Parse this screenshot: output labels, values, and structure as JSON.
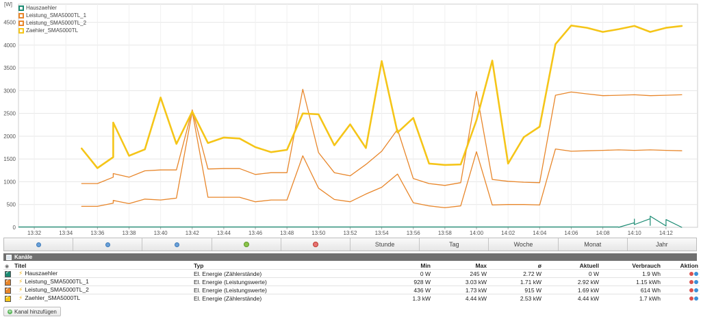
{
  "chart": {
    "unit_label": "[W]",
    "y_ticks": [
      "0",
      "500",
      "1000",
      "1500",
      "2000",
      "2500",
      "3000",
      "3500",
      "4000",
      "4500"
    ],
    "x_ticks": [
      "13:32",
      "13:34",
      "13:36",
      "13:38",
      "13:40",
      "13:42",
      "13:44",
      "13:46",
      "13:48",
      "13:50",
      "13:52",
      "13:54",
      "13:56",
      "13:58",
      "14:00",
      "14:02",
      "14:04",
      "14:06",
      "14:08",
      "14:10",
      "14:12"
    ],
    "legend": [
      {
        "name": "Hauszaehler",
        "color": "#1a8a72"
      },
      {
        "name": "Leistung_SMA5000TL_1",
        "color": "#e8862a"
      },
      {
        "name": "Leistung_SMA5000TL_2",
        "color": "#e8862a"
      },
      {
        "name": "Zaehler_SMA5000TL",
        "color": "#f5c518"
      }
    ]
  },
  "chart_data": {
    "type": "line",
    "xlabel": "",
    "ylabel": "[W]",
    "ylim": [
      0,
      4900
    ],
    "xlim": [
      "13:31",
      "14:14"
    ],
    "series": [
      {
        "name": "Zaehler_SMA5000TL",
        "color": "#f5c518",
        "x": [
          "13:35",
          "13:36",
          "13:37",
          "13:37",
          "13:38",
          "13:39",
          "13:40",
          "13:41",
          "13:42",
          "13:43",
          "13:44",
          "13:45",
          "13:46",
          "13:47",
          "13:48",
          "13:49",
          "13:50",
          "13:51",
          "13:52",
          "13:53",
          "13:54",
          "13:55",
          "13:56",
          "13:57",
          "13:58",
          "13:59",
          "14:00",
          "14:01",
          "14:02",
          "14:03",
          "14:04",
          "14:05",
          "14:06",
          "14:07",
          "14:08",
          "14:09",
          "14:10",
          "14:11",
          "14:12",
          "14:13"
        ],
        "y": [
          1730,
          1300,
          1540,
          2300,
          1570,
          1710,
          2850,
          1830,
          2540,
          1850,
          1970,
          1950,
          1760,
          1650,
          1700,
          2500,
          2480,
          1800,
          2260,
          1740,
          3650,
          2080,
          2400,
          1400,
          1370,
          1380,
          2350,
          3660,
          1400,
          1980,
          2210,
          4020,
          4430,
          4380,
          4290,
          4350,
          4420,
          4290,
          4380,
          4420
        ]
      },
      {
        "name": "Leistung_SMA5000TL_1",
        "color": "#e8862a",
        "x": [
          "13:35",
          "13:36",
          "13:37",
          "13:37",
          "13:38",
          "13:39",
          "13:40",
          "13:41",
          "13:42",
          "13:43",
          "13:44",
          "13:45",
          "13:46",
          "13:47",
          "13:48",
          "13:49",
          "13:50",
          "13:51",
          "13:52",
          "13:53",
          "13:54",
          "13:55",
          "13:56",
          "13:57",
          "13:58",
          "13:59",
          "14:00",
          "14:01",
          "14:02",
          "14:03",
          "14:04",
          "14:05",
          "14:06",
          "14:07",
          "14:08",
          "14:09",
          "14:10",
          "14:11",
          "14:12",
          "14:13"
        ],
        "y": [
          960,
          960,
          1100,
          1180,
          1100,
          1240,
          1260,
          1260,
          2580,
          1280,
          1290,
          1290,
          1160,
          1200,
          1200,
          3030,
          1640,
          1200,
          1130,
          1380,
          1670,
          2150,
          1070,
          960,
          920,
          980,
          2980,
          1050,
          1010,
          990,
          980,
          2900,
          2970,
          2930,
          2890,
          2900,
          2910,
          2890,
          2900,
          2910
        ]
      },
      {
        "name": "Leistung_SMA5000TL_2",
        "color": "#e8862a",
        "x": [
          "13:35",
          "13:36",
          "13:37",
          "13:37",
          "13:38",
          "13:39",
          "13:40",
          "13:41",
          "13:42",
          "13:43",
          "13:44",
          "13:45",
          "13:46",
          "13:47",
          "13:48",
          "13:49",
          "13:50",
          "13:51",
          "13:52",
          "13:53",
          "13:54",
          "13:55",
          "13:56",
          "13:57",
          "13:58",
          "13:59",
          "14:00",
          "14:01",
          "14:02",
          "14:03",
          "14:04",
          "14:05",
          "14:06",
          "14:07",
          "14:08",
          "14:09",
          "14:10",
          "14:11",
          "14:12",
          "14:13"
        ],
        "y": [
          460,
          460,
          530,
          590,
          520,
          620,
          600,
          640,
          2540,
          660,
          660,
          660,
          560,
          600,
          600,
          1570,
          860,
          610,
          560,
          730,
          880,
          1170,
          540,
          470,
          430,
          470,
          1660,
          490,
          500,
          500,
          490,
          1720,
          1670,
          1680,
          1690,
          1700,
          1690,
          1700,
          1690,
          1680
        ]
      },
      {
        "name": "Hauszaehler",
        "color": "#1a8a72",
        "x": [
          "14:09",
          "14:10",
          "14:10",
          "14:10",
          "14:11",
          "14:11",
          "14:11",
          "14:12",
          "14:12",
          "14:13"
        ],
        "y": [
          0,
          100,
          180,
          60,
          190,
          40,
          245,
          30,
          170,
          0
        ]
      }
    ]
  },
  "toolbar": {
    "buttons": [
      {
        "label": "",
        "icon": "nav-back-icon"
      },
      {
        "label": "",
        "icon": "nav-back-icon"
      },
      {
        "label": "",
        "icon": "nav-forward-icon"
      },
      {
        "label": "",
        "icon": "zoom-in-icon"
      },
      {
        "label": "",
        "icon": "zoom-out-icon"
      },
      {
        "label": "Stunde"
      },
      {
        "label": "Tag"
      },
      {
        "label": "Woche"
      },
      {
        "label": "Monat"
      },
      {
        "label": "Jahr"
      }
    ]
  },
  "channels": {
    "title": "Kanäle",
    "headers": {
      "titel": "Titel",
      "typ": "Typ",
      "min": "Min",
      "max": "Max",
      "avg": "ø",
      "aktuell": "Aktuell",
      "verbrauch": "Verbrauch",
      "aktion": "Aktion"
    },
    "rows": [
      {
        "color": "#1a8a72",
        "titel": "Hauszaehler",
        "typ": "El. Energie (Zählerstände)",
        "min": "0 W",
        "max": "245 W",
        "avg": "2.72 W",
        "aktuell": "0 W",
        "verbrauch": "1.9 Wh"
      },
      {
        "color": "#e8862a",
        "titel": "Leistung_SMA5000TL_1",
        "typ": "El. Energie (Leistungswerte)",
        "min": "928 W",
        "max": "3.03 kW",
        "avg": "1.71 kW",
        "aktuell": "2.92 kW",
        "verbrauch": "1.15 kWh"
      },
      {
        "color": "#e8862a",
        "titel": "Leistung_SMA5000TL_2",
        "typ": "El. Energie (Leistungswerte)",
        "min": "436 W",
        "max": "1.73 kW",
        "avg": "915 W",
        "aktuell": "1.69 kW",
        "verbrauch": "614 Wh"
      },
      {
        "color": "#f5c518",
        "titel": "Zaehler_SMA5000TL",
        "typ": "El. Energie (Zählerstände)",
        "min": "1.3 kW",
        "max": "4.44 kW",
        "avg": "2.53 kW",
        "aktuell": "4.44 kW",
        "verbrauch": "1.7 kWh"
      }
    ],
    "add_label": "Kanal hinzufügen"
  }
}
